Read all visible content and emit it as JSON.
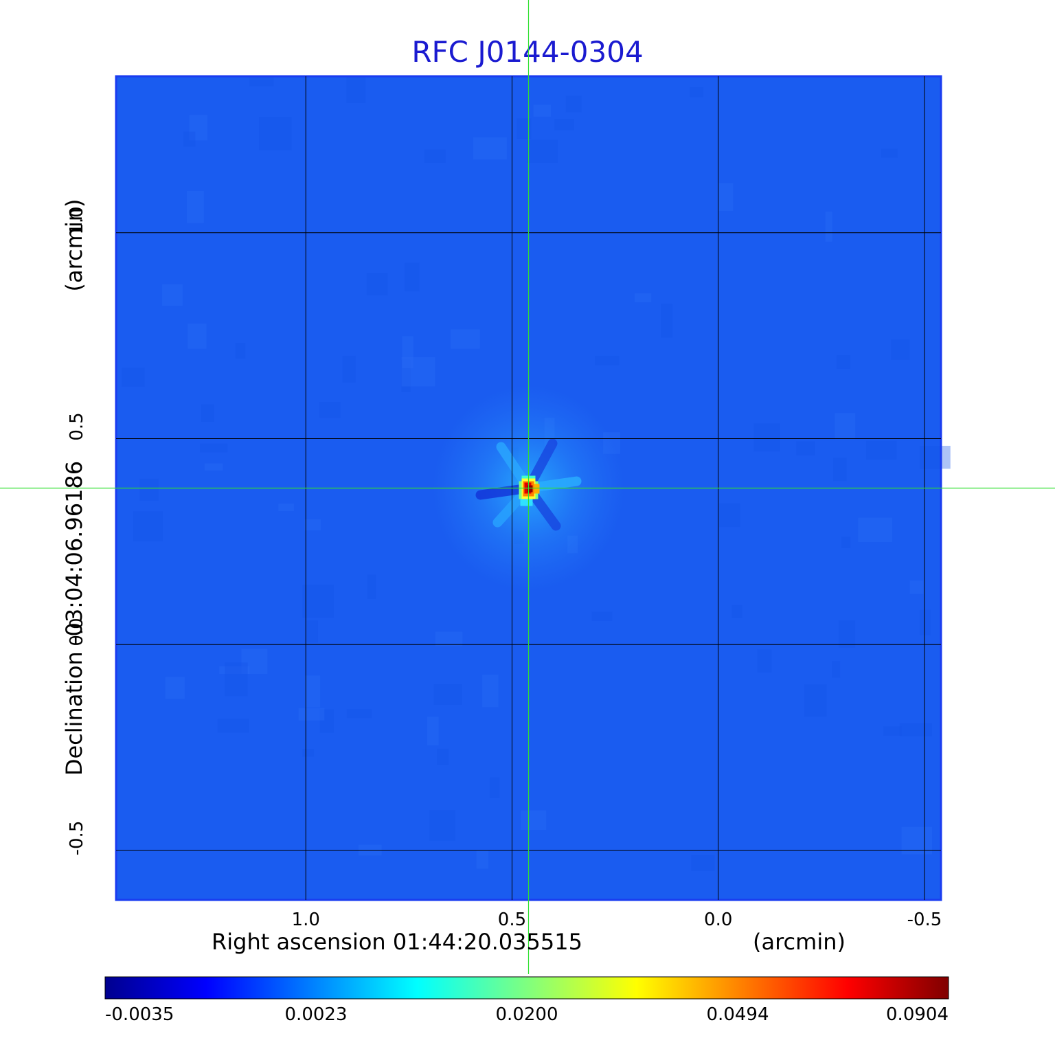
{
  "chart_data": {
    "type": "heatmap",
    "title": "RFC J0144-0304",
    "xlabel": "Right ascension  01:44:20.035515",
    "xunit": "(arcmin)",
    "ylabel": "Declination  -03:04:06.96186",
    "yunit": "(arcmin)",
    "x_ticks": [
      "1.0",
      "0.5",
      "0.0",
      "-0.5"
    ],
    "y_ticks": [
      "1.0",
      "0.5",
      "0.0",
      "-0.5"
    ],
    "x_tick_values": [
      1.0,
      0.5,
      0.0,
      -0.5
    ],
    "y_tick_values": [
      1.0,
      0.5,
      0.0,
      -0.5
    ],
    "xlim": [
      1.46,
      -0.54
    ],
    "ylim": [
      -0.62,
      1.38
    ],
    "grid": true,
    "crosshair": {
      "x": 0.46,
      "y": 0.38
    },
    "source_peak": {
      "x": 0.46,
      "y": 0.38,
      "value": 0.0904
    },
    "colorbar": {
      "ticks": [
        "-0.0035",
        "0.0023",
        "0.0200",
        "0.0494",
        "0.0904"
      ],
      "colormap": "jet"
    },
    "colors": {
      "background_field": "#1a5cf0",
      "frame": "#1a3cf0",
      "title": "#1a1ad0",
      "crosshair": "#30e030",
      "grid": "#000000"
    }
  }
}
